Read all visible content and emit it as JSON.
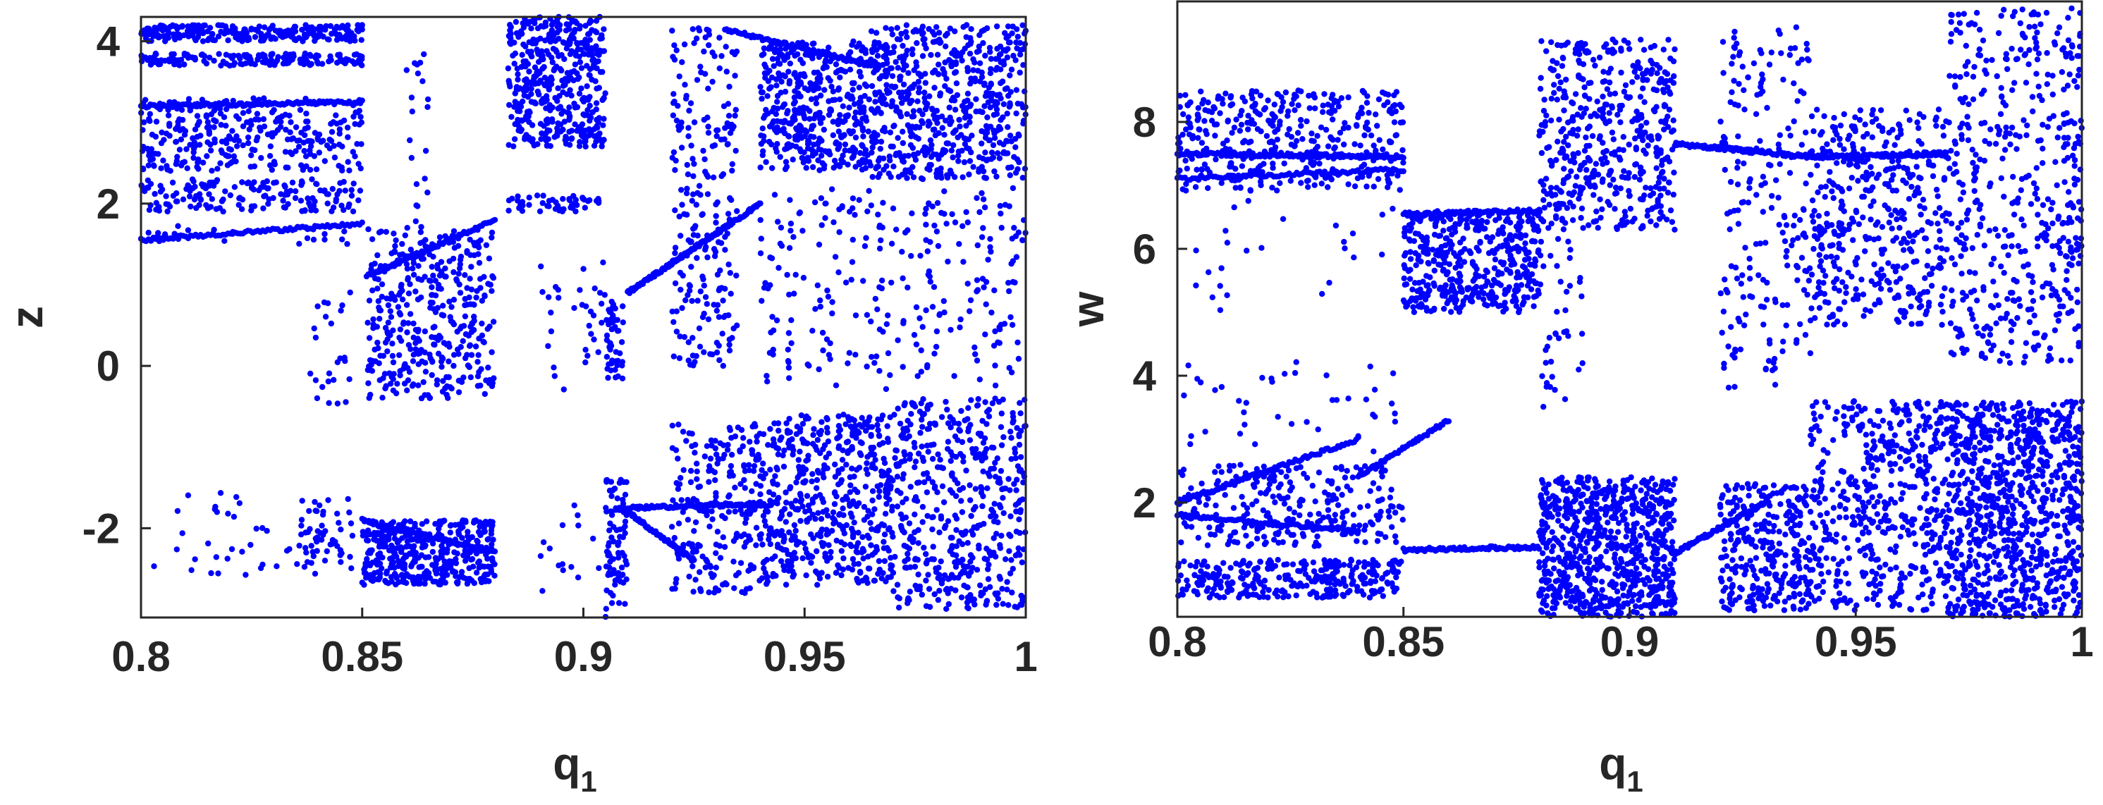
{
  "chart_data": [
    {
      "type": "scatter",
      "panel": "left",
      "xlabel": "q",
      "xlabel_subscript": "1",
      "ylabel": "z",
      "xlim": [
        0.8,
        1.0
      ],
      "ylim": [
        -3.1,
        4.3
      ],
      "xticks": [
        0.8,
        0.85,
        0.9,
        0.95,
        1.0
      ],
      "xtick_labels": [
        "0.8",
        "0.85",
        "0.9",
        "0.95",
        "1"
      ],
      "yticks": [
        -2,
        0,
        2,
        4
      ],
      "ytick_labels": [
        "-2",
        "0",
        "2",
        "4"
      ],
      "grid": false,
      "marker_color": "#0000ff",
      "bands": [
        {
          "x": [
            0.8,
            0.85
          ],
          "y": [
            4.0,
            4.2
          ],
          "n": 260
        },
        {
          "x": [
            0.8,
            0.85
          ],
          "y": [
            3.7,
            3.85
          ],
          "n": 160
        },
        {
          "x": [
            0.8,
            0.85
          ],
          "y": [
            2.4,
            3.3
          ],
          "n": 300
        },
        {
          "x": [
            0.8,
            0.85
          ],
          "y": [
            1.9,
            2.3
          ],
          "n": 160
        },
        {
          "x": [
            0.86,
            0.865
          ],
          "y": [
            0.6,
            3.9
          ],
          "n": 30
        },
        {
          "x": [
            0.851,
            0.88
          ],
          "y": [
            -0.4,
            1.7
          ],
          "n": 380
        },
        {
          "x": [
            0.838,
            0.848
          ],
          "y": [
            -0.8,
            1.0
          ],
          "n": 25
        },
        {
          "x": [
            0.883,
            0.905
          ],
          "y": [
            2.7,
            4.3
          ],
          "n": 450
        },
        {
          "x": [
            0.883,
            0.905
          ],
          "y": [
            1.9,
            2.1
          ],
          "n": 50
        },
        {
          "x": [
            0.89,
            0.908
          ],
          "y": [
            -0.3,
            1.3
          ],
          "n": 40
        },
        {
          "x": [
            0.905,
            0.909
          ],
          "y": [
            -0.2,
            0.8
          ],
          "n": 40
        },
        {
          "x": [
            0.92,
            0.935
          ],
          "y": [
            0.0,
            4.2
          ],
          "n": 230
        },
        {
          "x": [
            0.94,
            0.965
          ],
          "y": [
            2.4,
            4.0
          ],
          "n": 420
        },
        {
          "x": [
            0.965,
            1.0
          ],
          "y": [
            2.3,
            4.2
          ],
          "n": 600
        },
        {
          "x": [
            0.94,
            1.0
          ],
          "y": [
            -0.3,
            2.2
          ],
          "n": 260
        },
        {
          "x": [
            0.8,
            0.85
          ],
          "y": [
            1.5,
            1.75
          ],
          "n": 25
        },
        {
          "x": [
            0.8,
            0.84
          ],
          "y": [
            -2.6,
            -1.5
          ],
          "n": 40
        },
        {
          "x": [
            0.835,
            0.848
          ],
          "y": [
            -2.5,
            -1.6
          ],
          "n": 50
        },
        {
          "x": [
            0.85,
            0.88
          ],
          "y": [
            -2.7,
            -1.9
          ],
          "n": 420
        },
        {
          "x": [
            0.905,
            0.91
          ],
          "y": [
            -3.1,
            -1.4
          ],
          "n": 90
        },
        {
          "x": [
            0.89,
            0.905
          ],
          "y": [
            -2.8,
            -1.6
          ],
          "n": 15
        },
        {
          "x": [
            0.92,
            0.94
          ],
          "y": [
            -2.8,
            -0.7
          ],
          "n": 220
        },
        {
          "x": [
            0.94,
            0.97
          ],
          "y": [
            -2.7,
            -0.6
          ],
          "n": 520
        },
        {
          "x": [
            0.97,
            1.0
          ],
          "y": [
            -3.0,
            -0.4
          ],
          "n": 480
        }
      ],
      "curves": [
        {
          "x": [
            0.8,
            0.85
          ],
          "y0": 3.2,
          "y1": 3.25,
          "n": 120
        },
        {
          "x": [
            0.8,
            0.85
          ],
          "y0": 1.55,
          "y1": 1.75,
          "n": 90
        },
        {
          "x": [
            0.851,
            0.88
          ],
          "y0": 1.1,
          "y1": 1.8,
          "n": 80
        },
        {
          "x": [
            0.91,
            0.94
          ],
          "y0": 0.9,
          "y1": 2.0,
          "n": 140
        },
        {
          "x": [
            0.932,
            0.965
          ],
          "y0": 4.15,
          "y1": 3.7,
          "n": 90
        },
        {
          "x": [
            0.91,
            0.94
          ],
          "y0": -1.75,
          "y1": -1.7,
          "n": 100
        },
        {
          "x": [
            0.91,
            0.925
          ],
          "y0": -1.8,
          "y1": -2.4,
          "n": 60
        },
        {
          "x": [
            0.85,
            0.88
          ],
          "y0": -1.9,
          "y1": -2.3,
          "n": 60
        }
      ]
    },
    {
      "type": "scatter",
      "panel": "right",
      "xlabel": "q",
      "xlabel_subscript": "1",
      "ylabel": "w",
      "xlim": [
        0.8,
        1.0
      ],
      "ylim": [
        0.2,
        9.9
      ],
      "xticks": [
        0.8,
        0.85,
        0.9,
        0.95,
        1.0
      ],
      "xtick_labels": [
        "0.8",
        "0.85",
        "0.9",
        "0.95",
        "1"
      ],
      "yticks": [
        2,
        4,
        6,
        8
      ],
      "ytick_labels": [
        "2",
        "4",
        "6",
        "8"
      ],
      "grid": false,
      "marker_color": "#0000ff",
      "bands": [
        {
          "x": [
            0.8,
            0.85
          ],
          "y": [
            6.9,
            8.5
          ],
          "n": 380
        },
        {
          "x": [
            0.8,
            0.85
          ],
          "y": [
            4.9,
            6.8
          ],
          "n": 25
        },
        {
          "x": [
            0.8,
            0.85
          ],
          "y": [
            2.8,
            4.3
          ],
          "n": 40
        },
        {
          "x": [
            0.8,
            0.85
          ],
          "y": [
            1.3,
            2.6
          ],
          "n": 260
        },
        {
          "x": [
            0.8,
            0.85
          ],
          "y": [
            0.5,
            1.1
          ],
          "n": 300
        },
        {
          "x": [
            0.85,
            0.88
          ],
          "y": [
            5.0,
            6.6
          ],
          "n": 460
        },
        {
          "x": [
            0.88,
            0.91
          ],
          "y": [
            6.3,
            9.3
          ],
          "n": 480
        },
        {
          "x": [
            0.88,
            0.89
          ],
          "y": [
            3.4,
            6.3
          ],
          "n": 40
        },
        {
          "x": [
            0.88,
            0.91
          ],
          "y": [
            0.2,
            2.4
          ],
          "n": 780
        },
        {
          "x": [
            0.92,
            0.94
          ],
          "y": [
            3.8,
            9.5
          ],
          "n": 200
        },
        {
          "x": [
            0.92,
            0.94
          ],
          "y": [
            0.3,
            2.3
          ],
          "n": 300
        },
        {
          "x": [
            0.94,
            0.97
          ],
          "y": [
            4.8,
            8.2
          ],
          "n": 420
        },
        {
          "x": [
            0.94,
            0.97
          ],
          "y": [
            0.3,
            3.6
          ],
          "n": 480
        },
        {
          "x": [
            0.97,
            1.0
          ],
          "y": [
            4.2,
            9.8
          ],
          "n": 480
        },
        {
          "x": [
            0.97,
            1.0
          ],
          "y": [
            0.2,
            3.6
          ],
          "n": 900
        }
      ],
      "curves": [
        {
          "x": [
            0.8,
            0.85
          ],
          "y0": 7.5,
          "y1": 7.45,
          "n": 130
        },
        {
          "x": [
            0.8,
            0.85
          ],
          "y0": 7.1,
          "y1": 7.25,
          "n": 90
        },
        {
          "x": [
            0.8,
            0.84
          ],
          "y0": 2.0,
          "y1": 3.0,
          "n": 90
        },
        {
          "x": [
            0.8,
            0.84
          ],
          "y0": 1.8,
          "y1": 1.55,
          "n": 90
        },
        {
          "x": [
            0.85,
            0.88
          ],
          "y0": 1.25,
          "y1": 1.3,
          "n": 90
        },
        {
          "x": [
            0.85,
            0.88
          ],
          "y0": 6.55,
          "y1": 6.6,
          "n": 70
        },
        {
          "x": [
            0.84,
            0.86
          ],
          "y0": 2.4,
          "y1": 3.3,
          "n": 60
        },
        {
          "x": [
            0.91,
            0.94
          ],
          "y0": 7.65,
          "y1": 7.45,
          "n": 110
        },
        {
          "x": [
            0.94,
            0.97
          ],
          "y0": 7.45,
          "y1": 7.5,
          "n": 90
        },
        {
          "x": [
            0.91,
            0.93
          ],
          "y0": 1.2,
          "y1": 2.0,
          "n": 70
        }
      ]
    }
  ]
}
